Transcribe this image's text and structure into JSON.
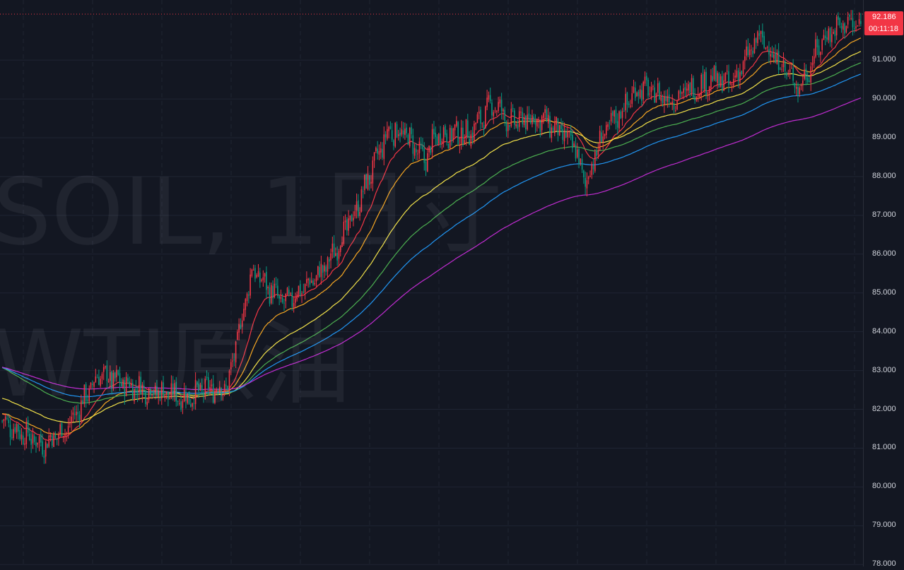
{
  "watermark": {
    "line1": "SOIL, 1日寸",
    "line2": "WTI原油"
  },
  "colors": {
    "background": "#131722",
    "grid": "#1f2433",
    "up": "#f23645",
    "down": "#089981",
    "ma_red": "#f23645",
    "ma_orange": "#f5a623",
    "ma_yellow": "#f2e24a",
    "ma_green": "#4caf50",
    "ma_blue": "#2196f3",
    "ma_purple": "#c02cd1"
  },
  "last_price": {
    "value": "92.186",
    "countdown": "00:11:18"
  },
  "chart_data": {
    "type": "candlestick",
    "y_axis": {
      "ticks": [
        "78.000",
        "79.000",
        "80.000",
        "81.000",
        "82.000",
        "83.000",
        "84.000",
        "85.000",
        "86.000",
        "87.000",
        "88.000",
        "89.000",
        "90.000",
        "91.000"
      ],
      "range": [
        77.95,
        92.55
      ]
    },
    "grid": true,
    "trend_anchors": [
      [
        0,
        81.7
      ],
      [
        25,
        81.1
      ],
      [
        40,
        81.5
      ],
      [
        60,
        82.9
      ],
      [
        80,
        82.6
      ],
      [
        115,
        82.3
      ],
      [
        125,
        82.5
      ],
      [
        140,
        82.6
      ],
      [
        155,
        85.6
      ],
      [
        175,
        84.7
      ],
      [
        200,
        85.6
      ],
      [
        218,
        87.0
      ],
      [
        240,
        89.2
      ],
      [
        250,
        89.1
      ],
      [
        262,
        88.4
      ],
      [
        270,
        89.1
      ],
      [
        290,
        89.1
      ],
      [
        305,
        89.9
      ],
      [
        315,
        89.4
      ],
      [
        335,
        89.5
      ],
      [
        355,
        88.8
      ],
      [
        362,
        87.8
      ],
      [
        372,
        89.0
      ],
      [
        395,
        90.3
      ],
      [
        415,
        90.0
      ],
      [
        440,
        90.5
      ],
      [
        453,
        90.4
      ],
      [
        470,
        91.6
      ],
      [
        495,
        90.3
      ],
      [
        510,
        91.6
      ],
      [
        525,
        92.0
      ],
      [
        533,
        91.8
      ]
    ],
    "candle_count": 534,
    "moving_averages": [
      {
        "color": "ma_red",
        "period": 20
      },
      {
        "color": "ma_orange",
        "period": 40
      },
      {
        "color": "ma_yellow",
        "period": 80
      },
      {
        "color": "ma_green",
        "period": 120
      },
      {
        "color": "ma_blue",
        "period": 160
      },
      {
        "color": "ma_purple",
        "period": 240
      }
    ]
  }
}
